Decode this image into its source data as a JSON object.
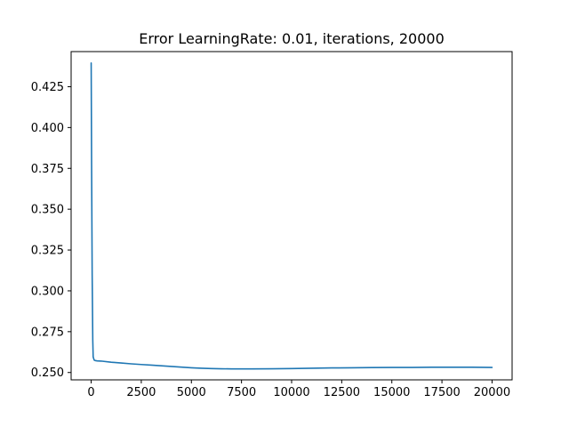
{
  "chart_data": {
    "type": "line",
    "title": "Error LearningRate: 0.01, iterations, 20000",
    "xlabel": "",
    "ylabel": "",
    "xlim": [
      -1000,
      21000
    ],
    "ylim": [
      0.2455,
      0.4465
    ],
    "grid": false,
    "legend": "none",
    "x_ticks": [
      {
        "value": 0,
        "label": "0"
      },
      {
        "value": 2500,
        "label": "2500"
      },
      {
        "value": 5000,
        "label": "5000"
      },
      {
        "value": 7500,
        "label": "7500"
      },
      {
        "value": 10000,
        "label": "10000"
      },
      {
        "value": 12500,
        "label": "12500"
      },
      {
        "value": 15000,
        "label": "15000"
      },
      {
        "value": 17500,
        "label": "17500"
      },
      {
        "value": 20000,
        "label": "20000"
      }
    ],
    "y_ticks": [
      {
        "value": 0.25,
        "label": "0.250"
      },
      {
        "value": 0.275,
        "label": "0.275"
      },
      {
        "value": 0.3,
        "label": "0.300"
      },
      {
        "value": 0.325,
        "label": "0.325"
      },
      {
        "value": 0.35,
        "label": "0.350"
      },
      {
        "value": 0.375,
        "label": "0.375"
      },
      {
        "value": 0.4,
        "label": "0.400"
      },
      {
        "value": 0.425,
        "label": "0.425"
      }
    ],
    "series": [
      {
        "color": "#1f77b4",
        "x": [
          0,
          20,
          50,
          80,
          100,
          150,
          200,
          300,
          500,
          1000,
          1500,
          2000,
          2500,
          3000,
          3500,
          4000,
          4500,
          5000,
          5500,
          6000,
          6500,
          7000,
          7500,
          8000,
          9000,
          10000,
          11000,
          12000,
          13000,
          14000,
          15000,
          16000,
          17000,
          18000,
          19000,
          20000
        ],
        "y": [
          0.4395,
          0.38,
          0.31,
          0.27,
          0.2595,
          0.2576,
          0.2573,
          0.2571,
          0.257,
          0.2563,
          0.2558,
          0.2553,
          0.2549,
          0.2545,
          0.2541,
          0.2537,
          0.2533,
          0.2529,
          0.2526,
          0.2524,
          0.2523,
          0.2522,
          0.2522,
          0.2522,
          0.2523,
          0.2524,
          0.2526,
          0.2528,
          0.2529,
          0.253,
          0.2531,
          0.2531,
          0.2532,
          0.2532,
          0.2532,
          0.2531
        ]
      }
    ]
  }
}
